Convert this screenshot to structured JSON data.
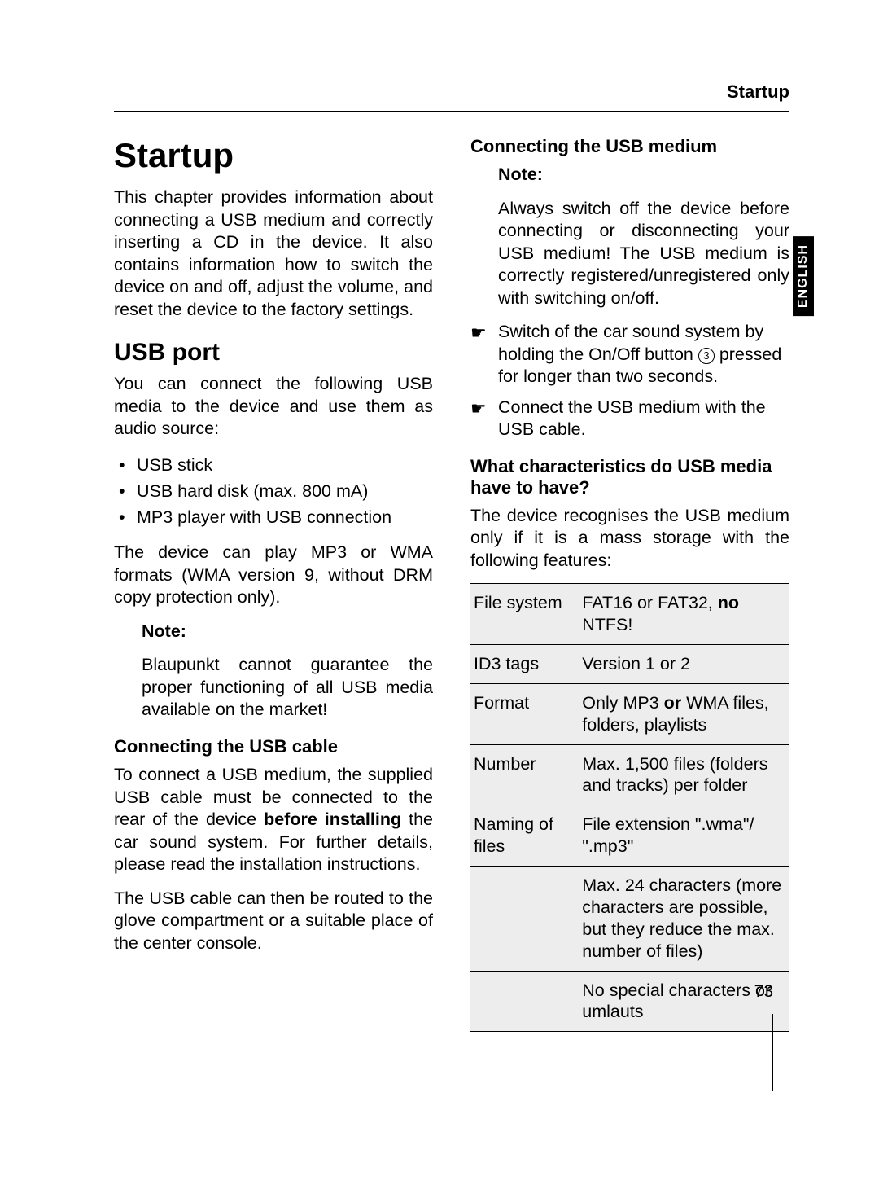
{
  "header": {
    "section": "Startup"
  },
  "sideTab": "ENGLISH",
  "pageNumber": "73",
  "left": {
    "chapterTitle": "Startup",
    "intro": "This chapter provides information about connecting a USB medium and correctly inserting a CD in the device. It also contains information how to switch the device on and off, adjust the volume, and reset the device to the factory settings.",
    "usbPort": {
      "title": "USB port",
      "lead": "You can connect the following USB media to the device and use them as audio source:",
      "items": [
        "USB stick",
        "USB hard disk (max. 800 mA)",
        "MP3 player with USB connection"
      ],
      "formats": "The device can play MP3 or WMA formats (WMA version 9, without DRM copy protection only).",
      "noteLabel": "Note:",
      "noteText": "Blaupunkt cannot guarantee the proper functioning of all USB media available on the market!"
    },
    "usbCable": {
      "title": "Connecting the USB cable",
      "p1_a": "To connect a USB medium, the supplied USB cable must be connected to the rear of the device ",
      "p1_bold": "before installing",
      "p1_b": " the car sound system. For further details, please read the installation instructions.",
      "p2": "The USB cable can then be routed to the glove compartment or a suitable place of the center console."
    }
  },
  "right": {
    "connMedium": {
      "title": "Connecting the USB medium",
      "noteLabel": "Note:",
      "noteText": "Always switch off the device before connecting or disconnecting your USB medium! The USB medium is correctly registered/unregistered only with switching on/off.",
      "step1_a": "Switch of the car sound system by holding the On/Off button ",
      "step1_num": "3",
      "step1_b": " pressed for longer than two seconds.",
      "step2": "Connect the USB medium with the USB cable."
    },
    "characteristics": {
      "title": "What characteristics do USB media have to have?",
      "lead": "The device recognises the USB medium only if it is a mass storage with the following features:"
    },
    "table": {
      "rows": [
        {
          "k": "File system",
          "v_a": "FAT16 or FAT32, ",
          "bold": "no",
          "v_b": " NTFS!"
        },
        {
          "k": "ID3 tags",
          "v": "Version 1 or 2"
        },
        {
          "k": "Format",
          "v_a": "Only MP3 ",
          "bold": "or",
          "v_b": " WMA files, folders, playlists"
        },
        {
          "k": "Number",
          "v": "Max. 1,500 files (folders and tracks) per folder"
        },
        {
          "k": "Naming of files",
          "v": "File extension \".wma\"/ \".mp3\""
        },
        {
          "k": "",
          "v": "Max. 24 characters (more characters are possible, but they reduce the max. number of files)"
        },
        {
          "k": "",
          "v": "No special characters or umlauts"
        }
      ]
    }
  }
}
